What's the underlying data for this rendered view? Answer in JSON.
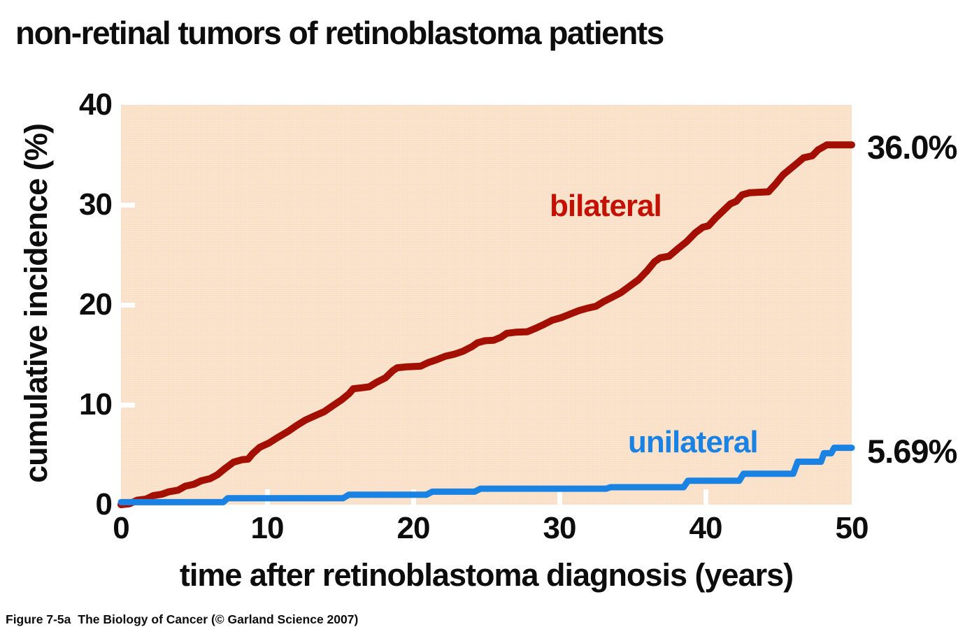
{
  "footer": {
    "figure_label": "Figure 7-5a",
    "book": "The Biology of Cancer (© Garland Science 2007)"
  },
  "chart_data": {
    "type": "line",
    "title": "non-retinal tumors of retinoblastoma patients",
    "xlabel": "time after retinoblastoma diagnosis (years)",
    "ylabel": "cumulative incidence (%)",
    "xlim": [
      0,
      50
    ],
    "ylim": [
      0,
      40
    ],
    "x_ticks": [
      0,
      10,
      20,
      30,
      40,
      50
    ],
    "y_ticks": [
      0,
      10,
      20,
      30,
      40
    ],
    "grid": false,
    "legend_position": "inline-labels",
    "plot_bg_color": "#f8dfc6",
    "tick_mark_color": "#ffffff",
    "series": [
      {
        "name": "bilateral",
        "color": "#a30f02",
        "label_color": "#c41104",
        "end_label": "36.0%",
        "final_value": 36.0,
        "points": [
          [
            0,
            0
          ],
          [
            0.6,
            0.1
          ],
          [
            1.1,
            0.45
          ],
          [
            1.7,
            0.55
          ],
          [
            2.2,
            0.9
          ],
          [
            2.8,
            1.05
          ],
          [
            3.3,
            1.3
          ],
          [
            3.9,
            1.45
          ],
          [
            4.4,
            1.85
          ],
          [
            5,
            2.05
          ],
          [
            5.5,
            2.4
          ],
          [
            6.1,
            2.6
          ],
          [
            6.6,
            3
          ],
          [
            7.1,
            3.6
          ],
          [
            7.7,
            4.25
          ],
          [
            8.3,
            4.5
          ],
          [
            8.7,
            4.55
          ],
          [
            9,
            5.1
          ],
          [
            9.5,
            5.75
          ],
          [
            10.1,
            6.15
          ],
          [
            10.7,
            6.7
          ],
          [
            11.4,
            7.3
          ],
          [
            12,
            7.9
          ],
          [
            12.6,
            8.45
          ],
          [
            13.2,
            8.85
          ],
          [
            13.9,
            9.3
          ],
          [
            14.5,
            9.9
          ],
          [
            15.1,
            10.5
          ],
          [
            15.6,
            11.1
          ],
          [
            15.9,
            11.6
          ],
          [
            16.5,
            11.7
          ],
          [
            17,
            11.8
          ],
          [
            17.5,
            12.25
          ],
          [
            18.1,
            12.7
          ],
          [
            18.6,
            13.4
          ],
          [
            18.9,
            13.7
          ],
          [
            19.6,
            13.8
          ],
          [
            20.5,
            13.85
          ],
          [
            21,
            14.2
          ],
          [
            21.6,
            14.5
          ],
          [
            22.2,
            14.85
          ],
          [
            22.8,
            15.05
          ],
          [
            23.4,
            15.35
          ],
          [
            24,
            15.8
          ],
          [
            24.4,
            16.2
          ],
          [
            24.9,
            16.4
          ],
          [
            25.5,
            16.45
          ],
          [
            26,
            16.75
          ],
          [
            26.4,
            17.15
          ],
          [
            27,
            17.25
          ],
          [
            27.8,
            17.3
          ],
          [
            28.3,
            17.6
          ],
          [
            28.9,
            18
          ],
          [
            29.5,
            18.45
          ],
          [
            30.1,
            18.7
          ],
          [
            30.7,
            19.05
          ],
          [
            31.3,
            19.4
          ],
          [
            31.9,
            19.65
          ],
          [
            32.5,
            19.85
          ],
          [
            33,
            20.3
          ],
          [
            33.6,
            20.75
          ],
          [
            34.2,
            21.2
          ],
          [
            34.8,
            21.85
          ],
          [
            35.4,
            22.5
          ],
          [
            36,
            23.4
          ],
          [
            36.5,
            24.3
          ],
          [
            36.9,
            24.7
          ],
          [
            37.5,
            24.85
          ],
          [
            38.1,
            25.6
          ],
          [
            38.7,
            26.3
          ],
          [
            39.3,
            27.2
          ],
          [
            39.8,
            27.75
          ],
          [
            40.2,
            27.9
          ],
          [
            40.7,
            28.7
          ],
          [
            41.2,
            29.4
          ],
          [
            41.7,
            30.1
          ],
          [
            42.1,
            30.35
          ],
          [
            42.5,
            31
          ],
          [
            43,
            31.2
          ],
          [
            44.3,
            31.3
          ],
          [
            44.8,
            32.1
          ],
          [
            45.3,
            33
          ],
          [
            45.8,
            33.6
          ],
          [
            46.3,
            34.2
          ],
          [
            46.7,
            34.7
          ],
          [
            47.3,
            34.9
          ],
          [
            47.7,
            35.5
          ],
          [
            48,
            35.75
          ],
          [
            48.3,
            36
          ],
          [
            50,
            36
          ]
        ]
      },
      {
        "name": "unilateral",
        "color": "#1982e3",
        "label_color": "#1982e3",
        "end_label": "5.69%",
        "final_value": 5.69,
        "points": [
          [
            0,
            0.25
          ],
          [
            7,
            0.25
          ],
          [
            7.3,
            0.65
          ],
          [
            15.2,
            0.65
          ],
          [
            15.6,
            1
          ],
          [
            20.9,
            1
          ],
          [
            21.3,
            1.3
          ],
          [
            24.2,
            1.3
          ],
          [
            24.6,
            1.6
          ],
          [
            33.2,
            1.6
          ],
          [
            33.5,
            1.75
          ],
          [
            38.5,
            1.75
          ],
          [
            38.8,
            2.4
          ],
          [
            42.3,
            2.4
          ],
          [
            42.6,
            3.1
          ],
          [
            46,
            3.1
          ],
          [
            46.3,
            4.3
          ],
          [
            47.9,
            4.3
          ],
          [
            48.1,
            5.15
          ],
          [
            48.6,
            5.15
          ],
          [
            48.8,
            5.69
          ],
          [
            50,
            5.69
          ]
        ]
      }
    ]
  }
}
